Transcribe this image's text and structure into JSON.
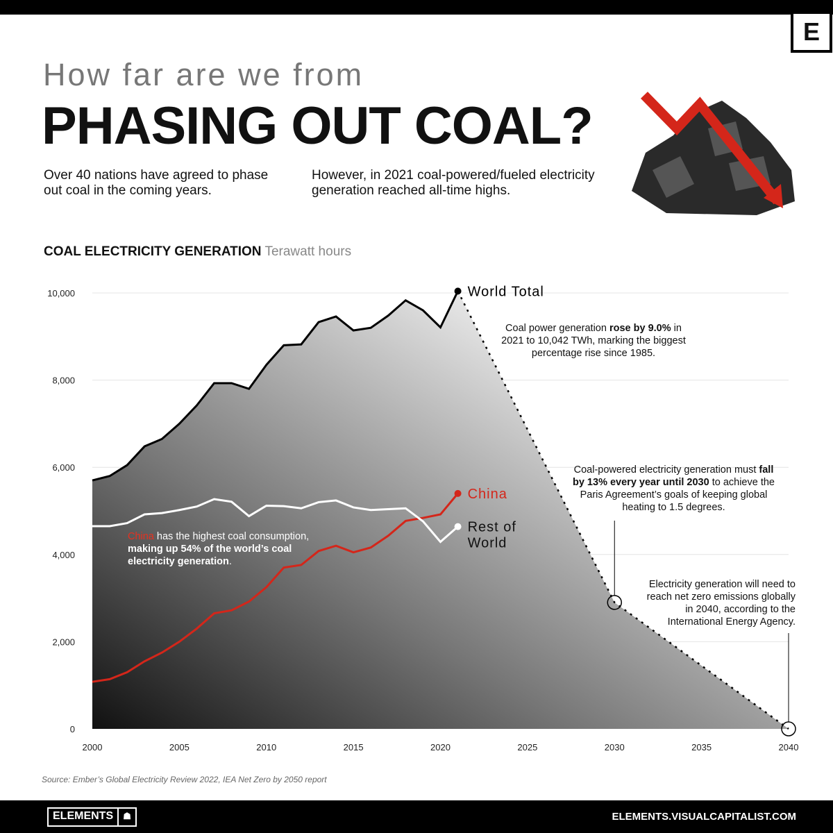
{
  "header": {
    "pretitle": "How far are we from",
    "title": "PHASING OUT COAL?",
    "logo": "E",
    "sub_left": "Over 40 nations have agreed to phase out coal in the coming years.",
    "sub_right": "However, in 2021 coal-powered/fueled electricity generation reached all-time highs."
  },
  "chart_data": {
    "type": "line",
    "title": "COAL ELECTRICITY GENERATION",
    "ylabel": "Terawatt hours",
    "xlim": [
      2000,
      2040
    ],
    "ylim": [
      0,
      10000
    ],
    "x_ticks": [
      "2000",
      "2005",
      "2010",
      "2015",
      "2020",
      "2025",
      "2030",
      "2035",
      "2040"
    ],
    "y_ticks": [
      "0",
      "2,000",
      "4,000",
      "6,000",
      "8,000",
      "10,000"
    ],
    "grid": true,
    "x": [
      2000,
      2001,
      2002,
      2003,
      2004,
      2005,
      2006,
      2007,
      2008,
      2009,
      2010,
      2011,
      2012,
      2013,
      2014,
      2015,
      2016,
      2017,
      2018,
      2019,
      2020,
      2021
    ],
    "series": [
      {
        "name": "World Total",
        "color": "#000000",
        "values": [
          5700,
          5800,
          6050,
          6480,
          6650,
          7000,
          7420,
          7930,
          7930,
          7800,
          8350,
          8800,
          8820,
          9330,
          9460,
          9140,
          9200,
          9480,
          9830,
          9600,
          9210,
          10042
        ]
      },
      {
        "name": "China",
        "color": "#d4261a",
        "values": [
          1080,
          1140,
          1300,
          1550,
          1750,
          2000,
          2300,
          2650,
          2720,
          2920,
          3250,
          3700,
          3760,
          4080,
          4200,
          4050,
          4160,
          4430,
          4770,
          4840,
          4920,
          5400
        ]
      },
      {
        "name": "Rest of World",
        "color": "#ffffff",
        "values": [
          4650,
          4650,
          4720,
          4920,
          4950,
          5020,
          5100,
          5270,
          5210,
          4880,
          5120,
          5110,
          5060,
          5200,
          5240,
          5080,
          5020,
          5040,
          5060,
          4760,
          4290,
          4640
        ]
      }
    ],
    "projection": {
      "x": [
        2021,
        2030,
        2040
      ],
      "values": [
        10042,
        2900,
        0
      ],
      "style": "dotted"
    }
  },
  "annotations": {
    "world": [
      "Coal power generation ",
      "rose by 9.0%",
      " in 2021 to 10,042 TWh, marking the biggest percentage rise since 1985."
    ],
    "china": [
      "China",
      " has the highest coal consumption, ",
      "making up 54% of the world’s coal electricity generation",
      "."
    ],
    "paris": [
      "Coal-powered electricity generation must ",
      "fall by 13% every year until 2030",
      " to achieve the Paris Agreement’s goals of keeping global heating to 1.5 degrees."
    ],
    "netzero": "Electricity generation will need to reach net zero emissions globally in 2040, according to the International Energy Agency."
  },
  "footer": {
    "source": "Source: Ember’s Global Electricity Review 2022, IEA Net Zero by 2050 report",
    "brand": "ELEMENTS",
    "url": "ELEMENTS.VISUALCAPITALIST.COM"
  }
}
